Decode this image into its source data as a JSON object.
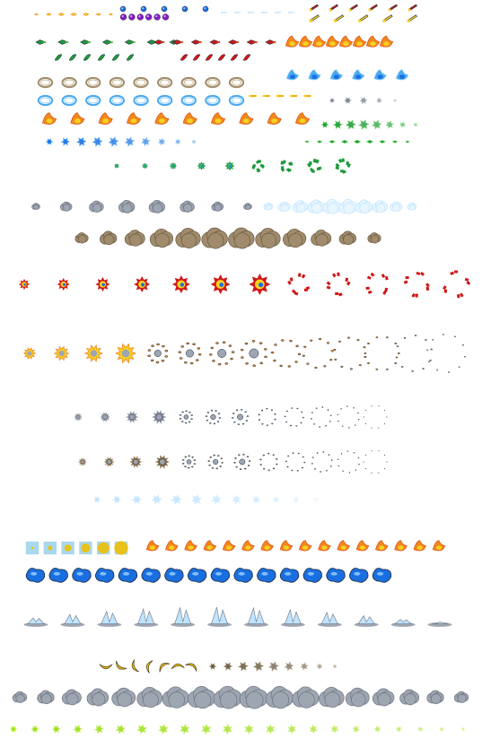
{
  "sheet": {
    "background": "#ffffff",
    "palette": {
      "fire": [
        "#f7d024",
        "#f08a1c",
        "#e04a10",
        "#ffef7a"
      ],
      "blue": [
        "#1a6fe0",
        "#4aa8f0",
        "#9ad4ff"
      ],
      "smoke": [
        "#6e7480",
        "#9ea6b2",
        "#c8ced8"
      ],
      "dust": [
        "#6b5a44",
        "#a08c6c",
        "#cdbb98"
      ],
      "red": [
        "#d01818",
        "#f04a1a",
        "#ffd21a"
      ],
      "green": [
        "#1c9a3a",
        "#5ac84a",
        "#3dbf7a"
      ],
      "purple": [
        "#8a1ac8",
        "#c05ae0"
      ],
      "ice": [
        "#bfe4ff",
        "#e8f6ff"
      ],
      "banana": [
        "#e8c21a",
        "#f7e05a"
      ],
      "lime": [
        "#9ae01a",
        "#c8f05a"
      ],
      "panel": "#a8d8ec",
      "ink": "#1a2a3a"
    },
    "sprite_rows": [
      {
        "name": "gold-sparks",
        "type": "spark",
        "tone": "fire",
        "frames": 7
      },
      {
        "name": "purple-orbs",
        "type": "orb",
        "tone": "purple",
        "frames": 6
      },
      {
        "name": "blue-orbs",
        "type": "orb",
        "tone": "blue",
        "frames": 5
      },
      {
        "name": "ice-streaks",
        "type": "streak",
        "tone": "ice",
        "frames": 6
      },
      {
        "name": "red-rockets",
        "type": "rocket",
        "tone": "red",
        "frames": 6
      },
      {
        "name": "flame-rockets",
        "type": "rocket",
        "tone": "fire",
        "frames": 5
      },
      {
        "name": "green-missiles",
        "type": "missile",
        "tone": "green",
        "frames": 7
      },
      {
        "name": "red-missiles",
        "type": "missile",
        "tone": "red",
        "frames": 7
      },
      {
        "name": "small-flames",
        "type": "flame",
        "tone": "fire",
        "frames": 8
      },
      {
        "name": "green-leaves",
        "type": "leaf",
        "tone": "green",
        "frames": 6
      },
      {
        "name": "red-shards",
        "type": "leaf",
        "tone": "red",
        "frames": 6
      },
      {
        "name": "sand-rings",
        "type": "ring",
        "tone": "dust",
        "frames": 9
      },
      {
        "name": "blue-plasma",
        "type": "flame",
        "tone": "blue",
        "frames": 6
      },
      {
        "name": "ice-rings",
        "type": "ring",
        "tone": "blue",
        "frames": 9
      },
      {
        "name": "fire-streaks",
        "type": "streak",
        "tone": "fire",
        "frames": 5
      },
      {
        "name": "gray-splats",
        "type": "splat",
        "tone": "smoke",
        "frames": 5
      },
      {
        "name": "fireballs-row",
        "type": "flame",
        "tone": "fire",
        "frames": 10
      },
      {
        "name": "green-splats",
        "type": "splat",
        "tone": "green",
        "frames": 8
      },
      {
        "name": "blue-bursts",
        "type": "splat",
        "tone": "blue",
        "frames": 10
      },
      {
        "name": "green-sparkles",
        "type": "spark",
        "tone": "green",
        "frames": 9
      },
      {
        "name": "green-blasts",
        "type": "burst",
        "tone": "green",
        "frames": 9
      },
      {
        "name": "smoke-puffs-a",
        "type": "cloud",
        "tone": "smoke",
        "frames": 8
      },
      {
        "name": "ice-clouds",
        "type": "cloud",
        "tone": "ice",
        "frames": 10
      },
      {
        "name": "dust-clouds",
        "type": "cloud",
        "tone": "dust",
        "frames": 12
      },
      {
        "name": "red-explosion",
        "type": "burst",
        "tone": "red",
        "frames": 12
      },
      {
        "name": "big-explosion",
        "type": "ringburst",
        "tone": "fire",
        "frames": 14
      },
      {
        "name": "blue-smoke-rings",
        "type": "ringburst",
        "tone": "smoke",
        "frames": 12
      },
      {
        "name": "dust-smoke-rings",
        "type": "ringburst",
        "tone": "dust",
        "frames": 12
      },
      {
        "name": "ice-puffs",
        "type": "splat",
        "tone": "ice",
        "frames": 12
      },
      {
        "name": "yellow-tiles",
        "type": "tile",
        "tone": "banana",
        "frames": 6
      },
      {
        "name": "fireball-trail",
        "type": "flame",
        "tone": "fire",
        "frames": 16
      },
      {
        "name": "water-blobs",
        "type": "blob",
        "tone": "blue",
        "frames": 16
      },
      {
        "name": "water-splash",
        "type": "splash",
        "tone": "smoke",
        "frames": 12
      },
      {
        "name": "bananas",
        "type": "banana",
        "tone": "banana",
        "frames": 7
      },
      {
        "name": "debris",
        "type": "splat",
        "tone": "dust",
        "frames": 9
      },
      {
        "name": "smoke-columns",
        "type": "cloud",
        "tone": "smoke",
        "frames": 18
      },
      {
        "name": "mixed-particles",
        "type": "splat",
        "tone": "lime",
        "frames": 22
      }
    ]
  }
}
